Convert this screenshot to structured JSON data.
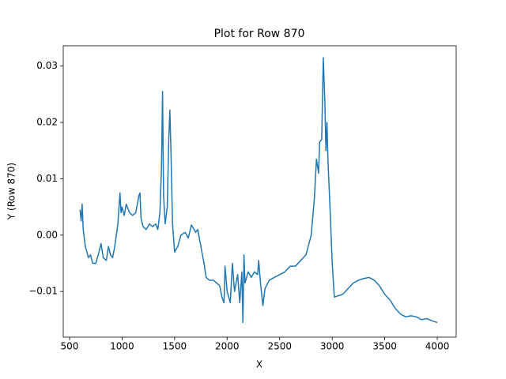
{
  "chart_data": {
    "type": "line",
    "title": "Plot for Row 870",
    "xlabel": "X",
    "ylabel": "Y (Row 870)",
    "color": "#1f77b4",
    "x": [
      600,
      610,
      620,
      630,
      650,
      680,
      700,
      720,
      750,
      780,
      800,
      820,
      850,
      870,
      890,
      910,
      930,
      960,
      980,
      990,
      1000,
      1020,
      1040,
      1070,
      1100,
      1130,
      1160,
      1170,
      1180,
      1200,
      1230,
      1260,
      1290,
      1320,
      1340,
      1360,
      1375,
      1385,
      1395,
      1410,
      1430,
      1445,
      1455,
      1465,
      1480,
      1500,
      1530,
      1560,
      1600,
      1630,
      1660,
      1700,
      1720,
      1750,
      1780,
      1800,
      1830,
      1870,
      1900,
      1930,
      1950,
      1970,
      1980,
      2000,
      2030,
      2050,
      2070,
      2100,
      2120,
      2140,
      2150,
      2160,
      2170,
      2200,
      2230,
      2260,
      2290,
      2300,
      2320,
      2340,
      2360,
      2400,
      2450,
      2500,
      2550,
      2600,
      2650,
      2700,
      2750,
      2800,
      2830,
      2850,
      2870,
      2880,
      2900,
      2915,
      2930,
      2940,
      2950,
      2960,
      2980,
      3000,
      3020,
      3050,
      3100,
      3150,
      3200,
      3250,
      3300,
      3350,
      3400,
      3450,
      3500,
      3550,
      3600,
      3650,
      3700,
      3750,
      3800,
      3850,
      3900,
      3950,
      4000
    ],
    "values": [
      0.0045,
      0.0025,
      0.0055,
      0.001,
      -0.002,
      -0.004,
      -0.0035,
      -0.005,
      -0.005,
      -0.003,
      -0.0015,
      -0.004,
      -0.0045,
      -0.002,
      -0.0035,
      -0.004,
      -0.002,
      0.002,
      0.0075,
      0.004,
      0.005,
      0.0035,
      0.0055,
      0.004,
      0.0035,
      0.004,
      0.007,
      0.0075,
      0.003,
      0.0015,
      0.001,
      0.002,
      0.0015,
      0.002,
      0.001,
      0.004,
      0.012,
      0.0255,
      0.007,
      0.002,
      0.005,
      0.0175,
      0.0222,
      0.015,
      0.002,
      -0.003,
      -0.002,
      0,
      0.0005,
      -0.0005,
      0.0018,
      0.0005,
      0.001,
      -0.002,
      -0.005,
      -0.0075,
      -0.008,
      -0.008,
      -0.0085,
      -0.009,
      -0.011,
      -0.012,
      -0.0055,
      -0.01,
      -0.012,
      -0.005,
      -0.01,
      -0.007,
      -0.012,
      -0.0065,
      -0.0155,
      -0.0035,
      -0.0085,
      -0.0065,
      -0.0075,
      -0.0065,
      -0.007,
      -0.0045,
      -0.009,
      -0.0125,
      -0.0095,
      -0.008,
      -0.0075,
      -0.007,
      -0.0065,
      -0.0055,
      -0.0055,
      -0.0045,
      -0.0035,
      0,
      0.0065,
      0.0135,
      0.011,
      0.0165,
      0.017,
      0.0315,
      0.0235,
      0.015,
      0.02,
      0.013,
      0.0045,
      -0.005,
      -0.011,
      -0.0108,
      -0.0105,
      -0.0095,
      -0.0085,
      -0.008,
      -0.0077,
      -0.0075,
      -0.008,
      -0.009,
      -0.0105,
      -0.0115,
      -0.013,
      -0.014,
      -0.0145,
      -0.0143,
      -0.0145,
      -0.015,
      -0.0148,
      -0.0152,
      -0.0155
    ],
    "xlim": [
      440,
      4180
    ],
    "ylim": [
      -0.0181,
      0.0336
    ],
    "xticks": [
      500,
      1000,
      1500,
      2000,
      2500,
      3000,
      3500,
      4000
    ],
    "yticks": [
      {
        "value": -0.01,
        "label": "−0.01"
      },
      {
        "value": 0,
        "label": "0.00"
      },
      {
        "value": 0.01,
        "label": "0.01"
      },
      {
        "value": 0.02,
        "label": "0.02"
      },
      {
        "value": 0.03,
        "label": "0.03"
      }
    ]
  }
}
